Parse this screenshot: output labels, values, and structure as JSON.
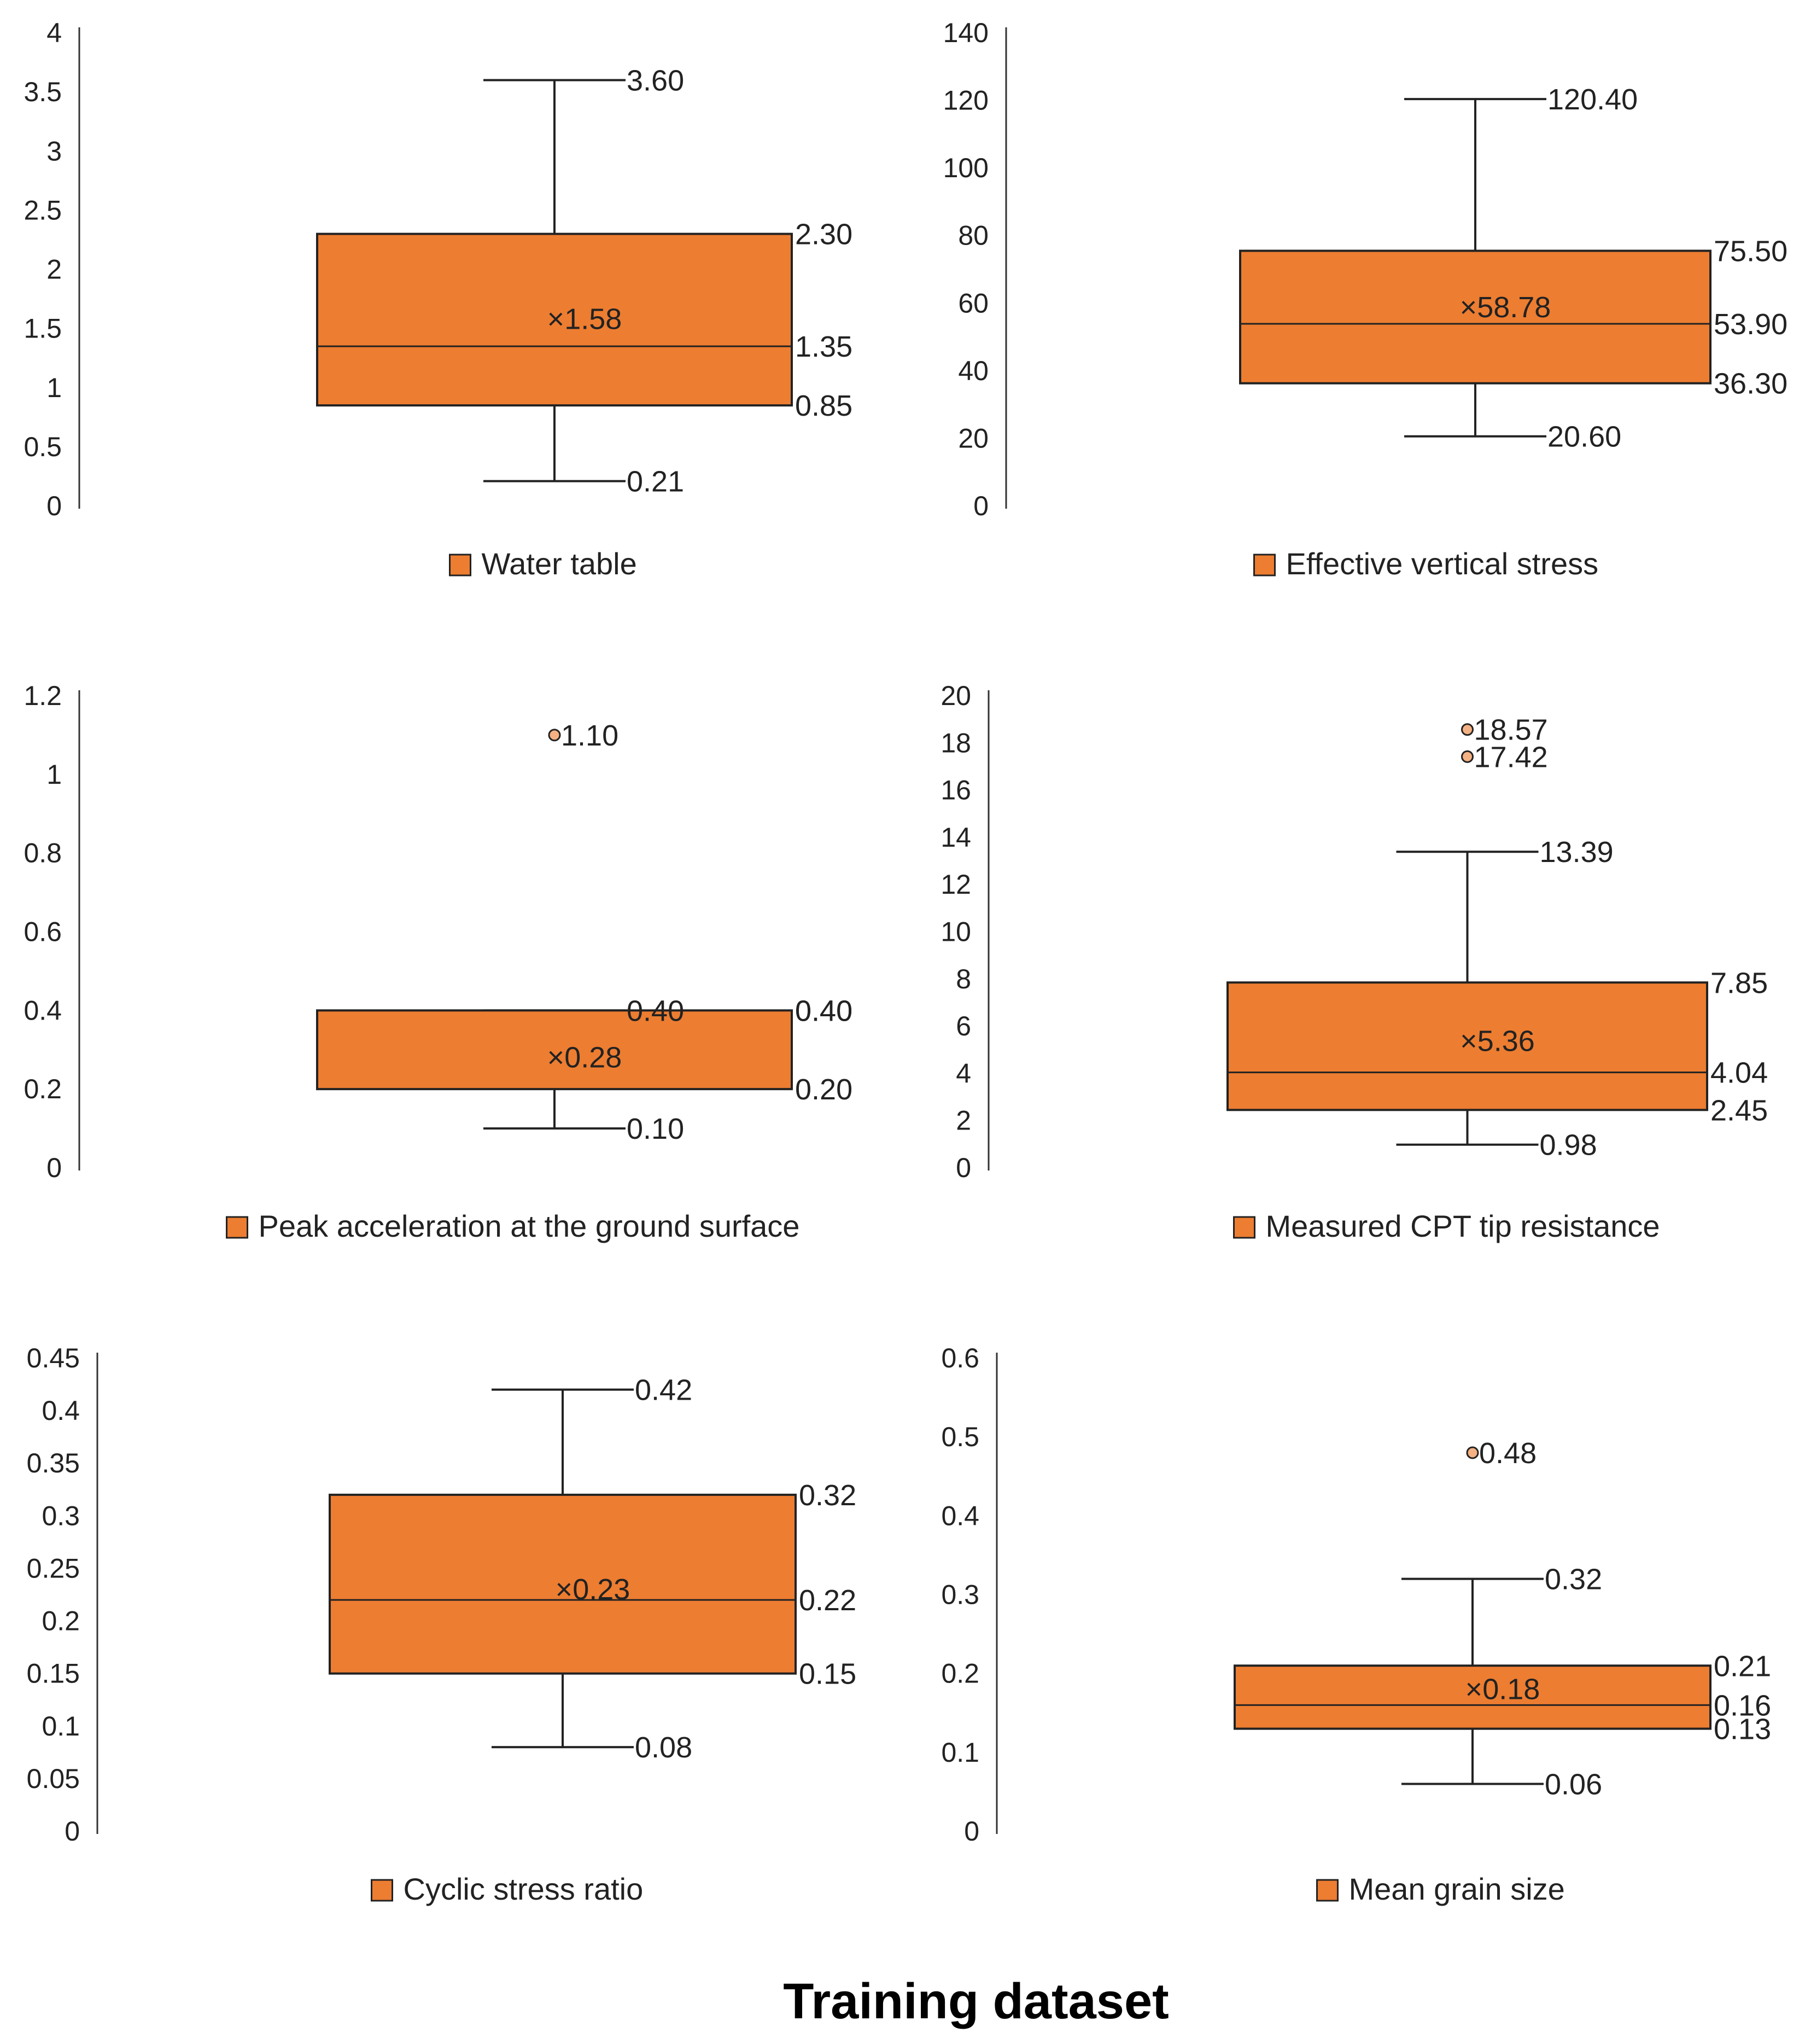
{
  "title": "Training dataset",
  "colors": {
    "box_fill": "#ED7D31",
    "box_stroke": "#222222",
    "axis": "#333333",
    "outlier_fill": "#F4B183"
  },
  "chart_data": [
    {
      "type": "box",
      "legend": "Water table",
      "ylim": [
        0,
        4
      ],
      "yticks": [
        "0",
        "0.5",
        "1",
        "1.5",
        "2",
        "2.5",
        "3",
        "3.5",
        "4"
      ],
      "yticks_values": [
        0,
        0.5,
        1,
        1.5,
        2,
        2.5,
        3,
        3.5,
        4
      ],
      "min": 0.21,
      "q1": 0.85,
      "median": 1.35,
      "q3": 2.3,
      "max": 3.6,
      "mean": 1.58,
      "outliers": [],
      "labels": {
        "min": "0.21",
        "q1": "0.85",
        "median": "1.35",
        "q3": "2.30",
        "max": "3.60",
        "mean": "×1.58"
      }
    },
    {
      "type": "box",
      "legend": "Effective vertical stress",
      "ylim": [
        0,
        140
      ],
      "yticks": [
        "0",
        "20",
        "40",
        "60",
        "80",
        "100",
        "120",
        "140"
      ],
      "yticks_values": [
        0,
        20,
        40,
        60,
        80,
        100,
        120,
        140
      ],
      "min": 20.6,
      "q1": 36.3,
      "median": 53.9,
      "q3": 75.5,
      "max": 120.4,
      "mean": 58.78,
      "outliers": [],
      "labels": {
        "min": "20.60",
        "q1": "36.30",
        "median": "53.90",
        "q3": "75.50",
        "max": "120.40",
        "mean": "×58.78"
      }
    },
    {
      "type": "box",
      "legend": "Peak acceleration at the ground surface",
      "ylim": [
        0,
        1.2
      ],
      "yticks": [
        "0",
        "0.2",
        "0.4",
        "0.6",
        "0.8",
        "1",
        "1.2"
      ],
      "yticks_values": [
        0,
        0.2,
        0.4,
        0.6,
        0.8,
        1,
        1.2
      ],
      "min": 0.1,
      "q1": 0.2,
      "median": 0.4,
      "q3": 0.4,
      "max": 0.4,
      "mean": 0.28,
      "outliers": [
        {
          "value": 1.1,
          "label": "1.10"
        }
      ],
      "labels": {
        "min": "0.10",
        "q1": "0.20",
        "median": "0.40",
        "q3": "0.40",
        "max": "0.40",
        "mean": "×0.28"
      }
    },
    {
      "type": "box",
      "legend": "Measured CPT tip resistance",
      "ylim": [
        0,
        20
      ],
      "yticks": [
        "0",
        "2",
        "4",
        "6",
        "8",
        "10",
        "12",
        "14",
        "16",
        "18",
        "20"
      ],
      "yticks_values": [
        0,
        2,
        4,
        6,
        8,
        10,
        12,
        14,
        16,
        18,
        20
      ],
      "min": 0.98,
      "q1": 2.45,
      "median": 4.04,
      "q3": 7.85,
      "max": 13.39,
      "mean": 5.36,
      "outliers": [
        {
          "value": 18.57,
          "label": "18.57"
        },
        {
          "value": 17.42,
          "label": "17.42"
        }
      ],
      "labels": {
        "min": "0.98",
        "q1": "2.45",
        "median": "4.04",
        "q3": "7.85",
        "max": "13.39",
        "mean": "×5.36"
      }
    },
    {
      "type": "box",
      "legend": "Cyclic stress ratio",
      "ylim": [
        0,
        0.45
      ],
      "yticks": [
        "0",
        "0.05",
        "0.1",
        "0.15",
        "0.2",
        "0.25",
        "0.3",
        "0.35",
        "0.4",
        "0.45"
      ],
      "yticks_values": [
        0,
        0.05,
        0.1,
        0.15,
        0.2,
        0.25,
        0.3,
        0.35,
        0.4,
        0.45
      ],
      "min": 0.08,
      "q1": 0.15,
      "median": 0.22,
      "q3": 0.32,
      "max": 0.42,
      "mean": 0.23,
      "outliers": [],
      "labels": {
        "min": "0.08",
        "q1": "0.15",
        "median": "0.22",
        "q3": "0.32",
        "max": "0.42",
        "mean": "×0.23"
      }
    },
    {
      "type": "box",
      "legend": "Mean grain size",
      "ylim": [
        0,
        0.6
      ],
      "yticks": [
        "0",
        "0.1",
        "0.2",
        "0.3",
        "0.4",
        "0.5",
        "0.6"
      ],
      "yticks_values": [
        0,
        0.1,
        0.2,
        0.3,
        0.4,
        0.5,
        0.6
      ],
      "min": 0.06,
      "q1": 0.13,
      "median": 0.16,
      "q3": 0.21,
      "max": 0.32,
      "mean": 0.18,
      "outliers": [
        {
          "value": 0.48,
          "label": "0.48"
        }
      ],
      "labels": {
        "min": "0.06",
        "q1": "0.13",
        "median": "0.16",
        "q3": "0.21",
        "max": "0.32",
        "mean": "×0.18"
      }
    }
  ]
}
